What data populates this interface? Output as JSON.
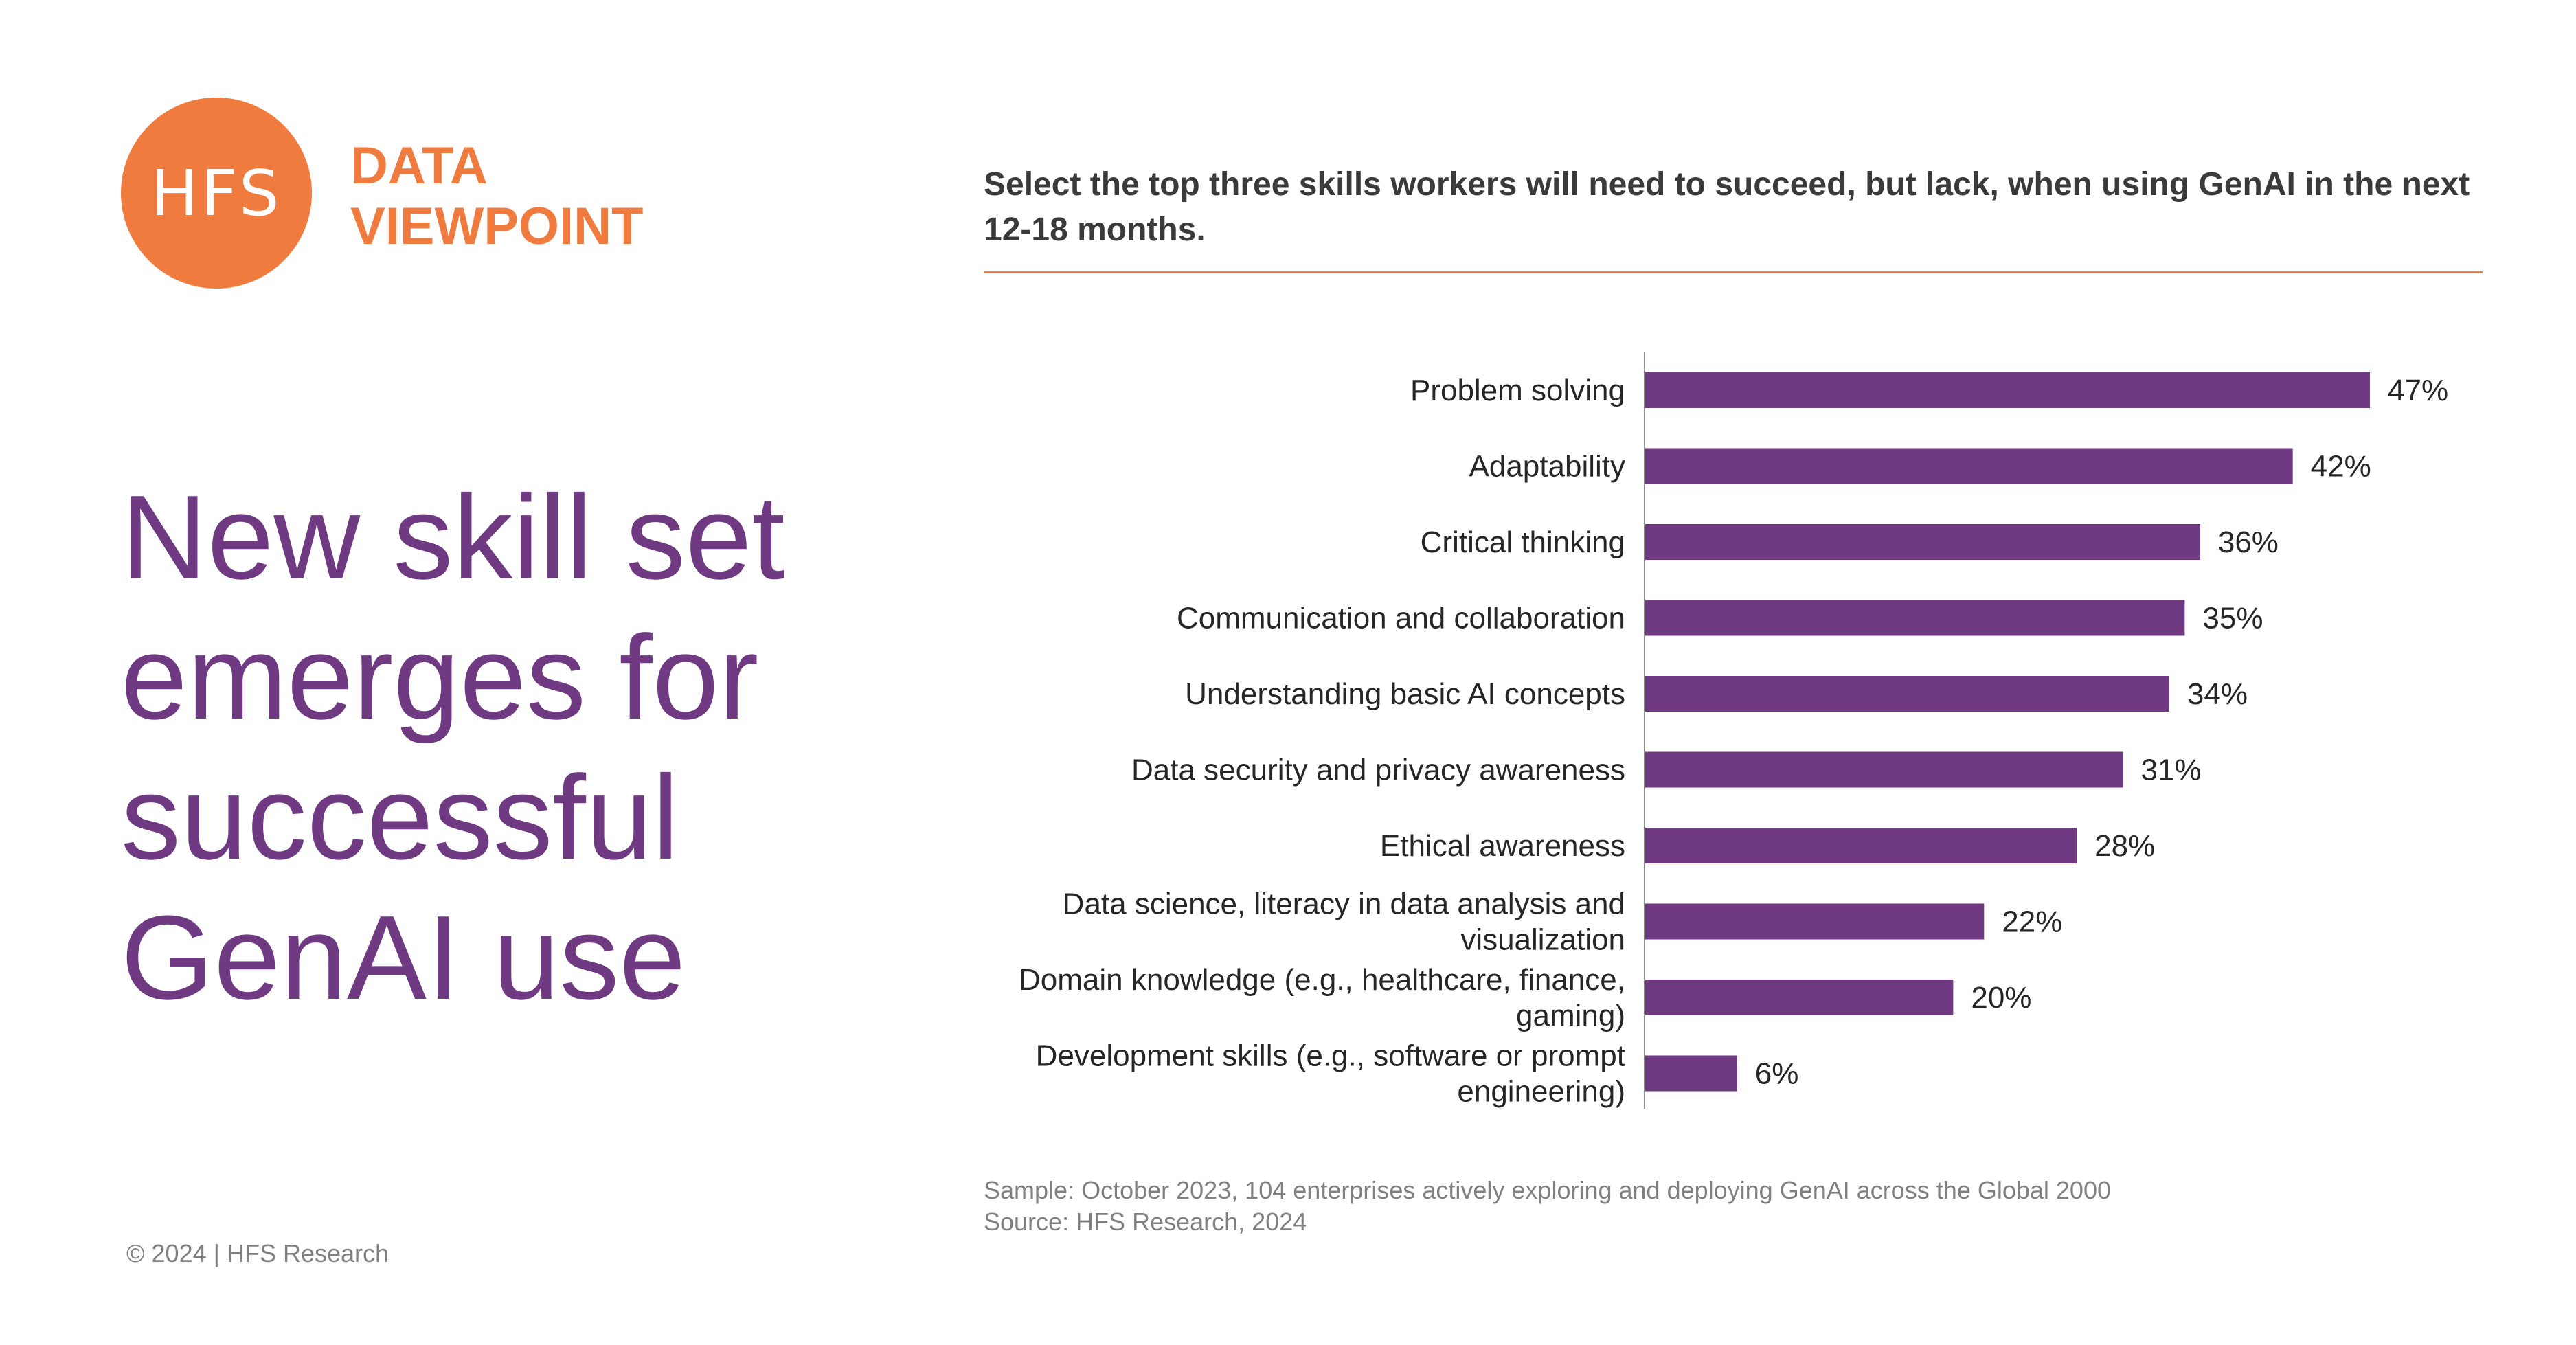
{
  "colors": {
    "brand_orange": "#F07B3F",
    "brand_purple": "#6F3A81",
    "bar": "#6F3A81",
    "text_dark": "#262626",
    "note_gray": "#808080"
  },
  "logo": {
    "mark": "HFS",
    "tag_line1": "DATA",
    "tag_line2": "VIEWPOINT"
  },
  "headline": "New skill set emerges for successful GenAI use",
  "question": "Select the top three skills workers will need to succeed, but lack, when using GenAI in the next 12-18 months.",
  "notes": {
    "sample": "Sample: October 2023, 104 enterprises actively exploring and deploying GenAI across the Global 2000",
    "source": "Source: HFS Research, 2024"
  },
  "copyright": "© 2024 | HFS Research",
  "chart_data": {
    "type": "bar",
    "orientation": "horizontal",
    "categories": [
      [
        "Problem solving"
      ],
      [
        "Adaptability"
      ],
      [
        "Critical thinking"
      ],
      [
        "Communication and collaboration"
      ],
      [
        "Understanding basic AI concepts"
      ],
      [
        "Data security and privacy awareness"
      ],
      [
        "Ethical awareness"
      ],
      [
        "Data science, literacy in data analysis and",
        "visualization"
      ],
      [
        "Domain knowledge (e.g., healthcare, finance,",
        "gaming)"
      ],
      [
        "Development skills (e.g., software or prompt",
        "engineering)"
      ]
    ],
    "values": [
      47,
      42,
      36,
      35,
      34,
      31,
      28,
      22,
      20,
      6
    ],
    "value_suffix": "%",
    "xlim": [
      0,
      47
    ],
    "grid": false,
    "legend": "none"
  }
}
